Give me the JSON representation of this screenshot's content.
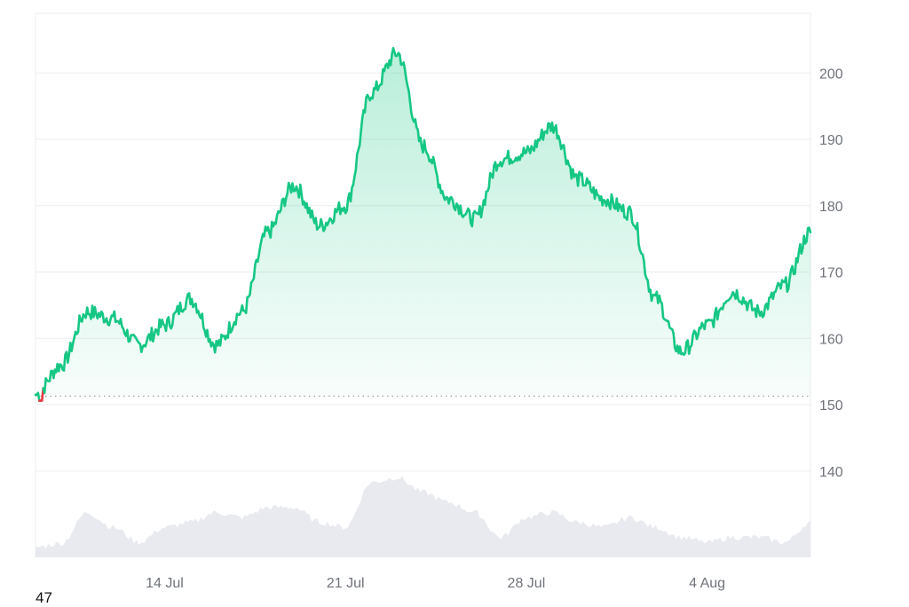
{
  "footer_text": "47",
  "chart_data": {
    "type": "area",
    "title": "",
    "xlabel": "",
    "ylabel": "",
    "x_ticks": [
      "14 Jul",
      "21 Jul",
      "28 Jul",
      "4 Aug"
    ],
    "y_ticks": [
      140,
      150,
      160,
      170,
      180,
      190,
      200
    ],
    "ylim": [
      127,
      209
    ],
    "baseline": 151.3,
    "grid": true,
    "colors": {
      "up": "#16c784",
      "down": "#ea3943",
      "volume": "#e8eaef",
      "grid": "#eceef2",
      "baseline_dots": "#9ba0a8"
    },
    "series": [
      {
        "x": [
          "2024-07-09",
          "2024-07-10",
          "2024-07-11",
          "2024-07-12",
          "2024-07-13",
          "2024-07-14",
          "2024-07-15",
          "2024-07-16",
          "2024-07-17",
          "2024-07-18",
          "2024-07-19",
          "2024-07-20",
          "2024-07-21",
          "2024-07-22",
          "2024-07-23",
          "2024-07-24",
          "2024-07-25",
          "2024-07-26",
          "2024-07-27",
          "2024-07-28",
          "2024-07-29",
          "2024-07-30",
          "2024-07-31",
          "2024-08-01",
          "2024-08-02",
          "2024-08-03",
          "2024-08-04",
          "2024-08-05",
          "2024-08-06",
          "2024-08-07",
          "2024-08-08"
        ],
        "values": [
          151.5,
          156,
          164,
          163,
          159,
          162,
          166,
          159,
          164,
          176,
          183,
          177,
          180,
          197,
          203,
          189,
          181,
          178,
          187,
          188,
          192,
          184,
          181,
          179,
          166,
          158,
          162,
          167,
          164,
          168,
          176
        ]
      },
      {
        "name": "Volume",
        "x": [
          "2024-07-09",
          "2024-07-10",
          "2024-07-11",
          "2024-07-12",
          "2024-07-13",
          "2024-07-14",
          "2024-07-15",
          "2024-07-16",
          "2024-07-17",
          "2024-07-18",
          "2024-07-19",
          "2024-07-20",
          "2024-07-21",
          "2024-07-22",
          "2024-07-23",
          "2024-07-24",
          "2024-07-25",
          "2024-07-26",
          "2024-07-27",
          "2024-07-28",
          "2024-07-29",
          "2024-07-30",
          "2024-07-31",
          "2024-08-01",
          "2024-08-02",
          "2024-08-03",
          "2024-08-04",
          "2024-08-05",
          "2024-08-06",
          "2024-08-07",
          "2024-08-08"
        ],
        "values": [
          0.1,
          0.14,
          0.45,
          0.3,
          0.15,
          0.3,
          0.35,
          0.45,
          0.4,
          0.5,
          0.5,
          0.35,
          0.3,
          0.75,
          0.8,
          0.65,
          0.55,
          0.45,
          0.2,
          0.4,
          0.45,
          0.35,
          0.3,
          0.4,
          0.3,
          0.2,
          0.15,
          0.2,
          0.2,
          0.15,
          0.35
        ]
      }
    ]
  }
}
